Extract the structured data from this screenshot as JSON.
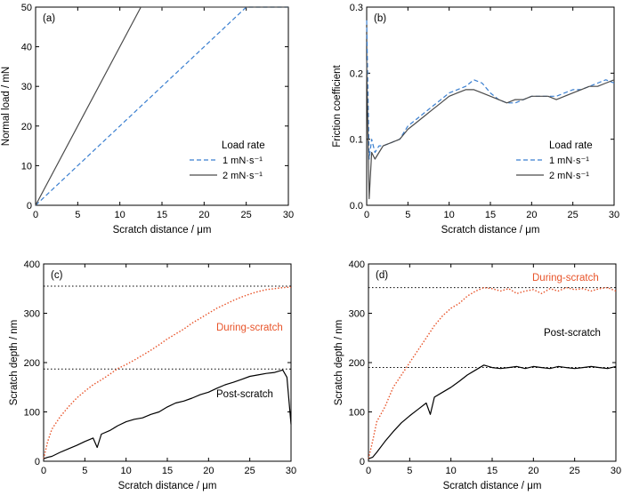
{
  "colors": {
    "rate1": "#3a7fd0",
    "rate2": "#4a4a4a",
    "during": "#e8542a",
    "post": "#000000",
    "axis": "#000000"
  },
  "chart_data": [
    {
      "type": "line",
      "panel": "(a)",
      "xlabel": "Scratch distance / μm",
      "ylabel": "Normal load / mN",
      "xlim": [
        0,
        30
      ],
      "ylim": [
        0,
        50
      ],
      "xticks": [
        0,
        5,
        10,
        15,
        20,
        25,
        30
      ],
      "yticks": [
        0,
        10,
        20,
        30,
        40,
        50
      ],
      "legend": {
        "title": "Load rate",
        "placement": "lower-right"
      },
      "series": [
        {
          "name": "1 mN·s⁻¹",
          "style": "dashed",
          "color": "#3a7fd0",
          "x": [
            0,
            25,
            30
          ],
          "y": [
            0,
            50,
            50
          ]
        },
        {
          "name": "2 mN·s⁻¹",
          "style": "solid",
          "color": "#4a4a4a",
          "x": [
            0,
            12.5,
            30
          ],
          "y": [
            0,
            50,
            50
          ]
        }
      ]
    },
    {
      "type": "line",
      "panel": "(b)",
      "xlabel": "Scratch distance / μm",
      "ylabel": "Friction coefficient",
      "xlim": [
        0,
        30
      ],
      "ylim": [
        0,
        0.3
      ],
      "xticks": [
        0,
        5,
        10,
        15,
        20,
        25,
        30
      ],
      "yticks": [
        0.0,
        0.1,
        0.2,
        0.3
      ],
      "ytick_labels": [
        "0.0",
        "0.1",
        "0.2",
        "0.3"
      ],
      "legend": {
        "title": "Load rate",
        "placement": "lower-right"
      },
      "series": [
        {
          "name": "1 mN·s⁻¹",
          "style": "dashed",
          "color": "#3a7fd0",
          "x": [
            0,
            0.3,
            0.6,
            1,
            1.5,
            2,
            3,
            4,
            5,
            6,
            7,
            8,
            9,
            10,
            11,
            12,
            13,
            14,
            15,
            16,
            17,
            18,
            19,
            20,
            21,
            22,
            23,
            24,
            25,
            26,
            27,
            28,
            29,
            30
          ],
          "y": [
            0.28,
            0.07,
            0.1,
            0.08,
            0.09,
            0.09,
            0.095,
            0.1,
            0.12,
            0.13,
            0.14,
            0.15,
            0.16,
            0.17,
            0.175,
            0.18,
            0.19,
            0.185,
            0.17,
            0.16,
            0.155,
            0.155,
            0.16,
            0.165,
            0.165,
            0.165,
            0.165,
            0.17,
            0.175,
            0.175,
            0.18,
            0.185,
            0.19,
            0.185
          ]
        },
        {
          "name": "2 mN·s⁻¹",
          "style": "solid",
          "color": "#4a4a4a",
          "x": [
            0,
            0.3,
            0.6,
            1,
            1.5,
            2,
            3,
            4,
            5,
            6,
            7,
            8,
            9,
            10,
            11,
            12,
            13,
            14,
            15,
            16,
            17,
            18,
            19,
            20,
            21,
            22,
            23,
            24,
            25,
            26,
            27,
            28,
            29,
            30
          ],
          "y": [
            0.22,
            0.01,
            0.08,
            0.07,
            0.08,
            0.09,
            0.095,
            0.1,
            0.115,
            0.125,
            0.135,
            0.145,
            0.155,
            0.165,
            0.17,
            0.175,
            0.175,
            0.17,
            0.165,
            0.16,
            0.155,
            0.16,
            0.16,
            0.165,
            0.165,
            0.165,
            0.16,
            0.165,
            0.17,
            0.175,
            0.18,
            0.18,
            0.185,
            0.19
          ]
        }
      ]
    },
    {
      "type": "line",
      "panel": "(c)",
      "xlabel": "Scratch distance / μm",
      "ylabel": "Scratch depth / nm",
      "xlim": [
        0,
        30
      ],
      "ylim": [
        0,
        400
      ],
      "xticks": [
        0,
        5,
        10,
        15,
        20,
        25,
        30
      ],
      "yticks": [
        0,
        100,
        200,
        300,
        400
      ],
      "reference_lines": [
        355,
        187
      ],
      "annotations": [
        {
          "text": "During-scratch",
          "color": "#e8542a"
        },
        {
          "text": "Post-scratch",
          "color": "#000000"
        }
      ],
      "series": [
        {
          "name": "During-scratch",
          "style": "dotted",
          "color": "#e8542a",
          "x": [
            0,
            0.5,
            1,
            2,
            3,
            4,
            5,
            6,
            7,
            8,
            9,
            10,
            11,
            12,
            13,
            14,
            15,
            16,
            17,
            18,
            19,
            20,
            21,
            22,
            23,
            24,
            25,
            26,
            27,
            28,
            29,
            30
          ],
          "y": [
            5,
            40,
            65,
            90,
            110,
            128,
            142,
            155,
            165,
            176,
            188,
            196,
            205,
            215,
            225,
            236,
            248,
            258,
            268,
            280,
            290,
            300,
            310,
            318,
            326,
            333,
            339,
            344,
            348,
            350,
            352,
            353
          ]
        },
        {
          "name": "Post-scratch",
          "style": "solid",
          "color": "#000000",
          "x": [
            0,
            0.5,
            1,
            2,
            3,
            4,
            5,
            6,
            6.5,
            7,
            8,
            9,
            10,
            11,
            12,
            13,
            14,
            15,
            16,
            17,
            18,
            19,
            20,
            21,
            22,
            23,
            24,
            25,
            26,
            27,
            28,
            29,
            29.5,
            30
          ],
          "y": [
            5,
            8,
            10,
            18,
            25,
            32,
            40,
            47,
            28,
            55,
            62,
            72,
            80,
            85,
            88,
            95,
            100,
            110,
            118,
            122,
            128,
            135,
            140,
            148,
            155,
            160,
            166,
            172,
            175,
            178,
            180,
            185,
            170,
            75
          ]
        }
      ]
    },
    {
      "type": "line",
      "panel": "(d)",
      "xlabel": "Scratch distance / μm",
      "ylabel": "Scratch depth / nm",
      "xlim": [
        0,
        30
      ],
      "ylim": [
        0,
        400
      ],
      "xticks": [
        0,
        5,
        10,
        15,
        20,
        25,
        30
      ],
      "yticks": [
        0,
        100,
        200,
        300,
        400
      ],
      "reference_lines": [
        352,
        190
      ],
      "annotations": [
        {
          "text": "During-scratch",
          "color": "#e8542a"
        },
        {
          "text": "Post-scratch",
          "color": "#000000"
        }
      ],
      "series": [
        {
          "name": "During-scratch",
          "style": "dotted",
          "color": "#e8542a",
          "x": [
            0,
            0.5,
            1,
            2,
            3,
            4,
            5,
            6,
            7,
            8,
            9,
            10,
            11,
            12,
            13,
            14,
            15,
            16,
            17,
            18,
            19,
            20,
            21,
            22,
            23,
            24,
            25,
            26,
            27,
            28,
            29,
            30
          ],
          "y": [
            5,
            40,
            80,
            110,
            150,
            175,
            200,
            225,
            250,
            275,
            295,
            310,
            320,
            335,
            345,
            352,
            350,
            345,
            350,
            340,
            345,
            348,
            340,
            350,
            345,
            352,
            348,
            350,
            345,
            350,
            352,
            345
          ]
        },
        {
          "name": "Post-scratch",
          "style": "solid",
          "color": "#000000",
          "x": [
            0,
            0.5,
            1,
            2,
            3,
            4,
            5,
            6,
            7,
            7.5,
            8,
            9,
            10,
            11,
            12,
            13,
            14,
            15,
            16,
            17,
            18,
            19,
            20,
            21,
            22,
            23,
            24,
            25,
            26,
            27,
            28,
            29,
            30
          ],
          "y": [
            5,
            8,
            18,
            40,
            60,
            78,
            92,
            105,
            118,
            95,
            130,
            140,
            150,
            162,
            175,
            185,
            195,
            190,
            188,
            190,
            192,
            188,
            192,
            190,
            188,
            192,
            190,
            188,
            190,
            192,
            190,
            188,
            192
          ]
        }
      ]
    }
  ]
}
